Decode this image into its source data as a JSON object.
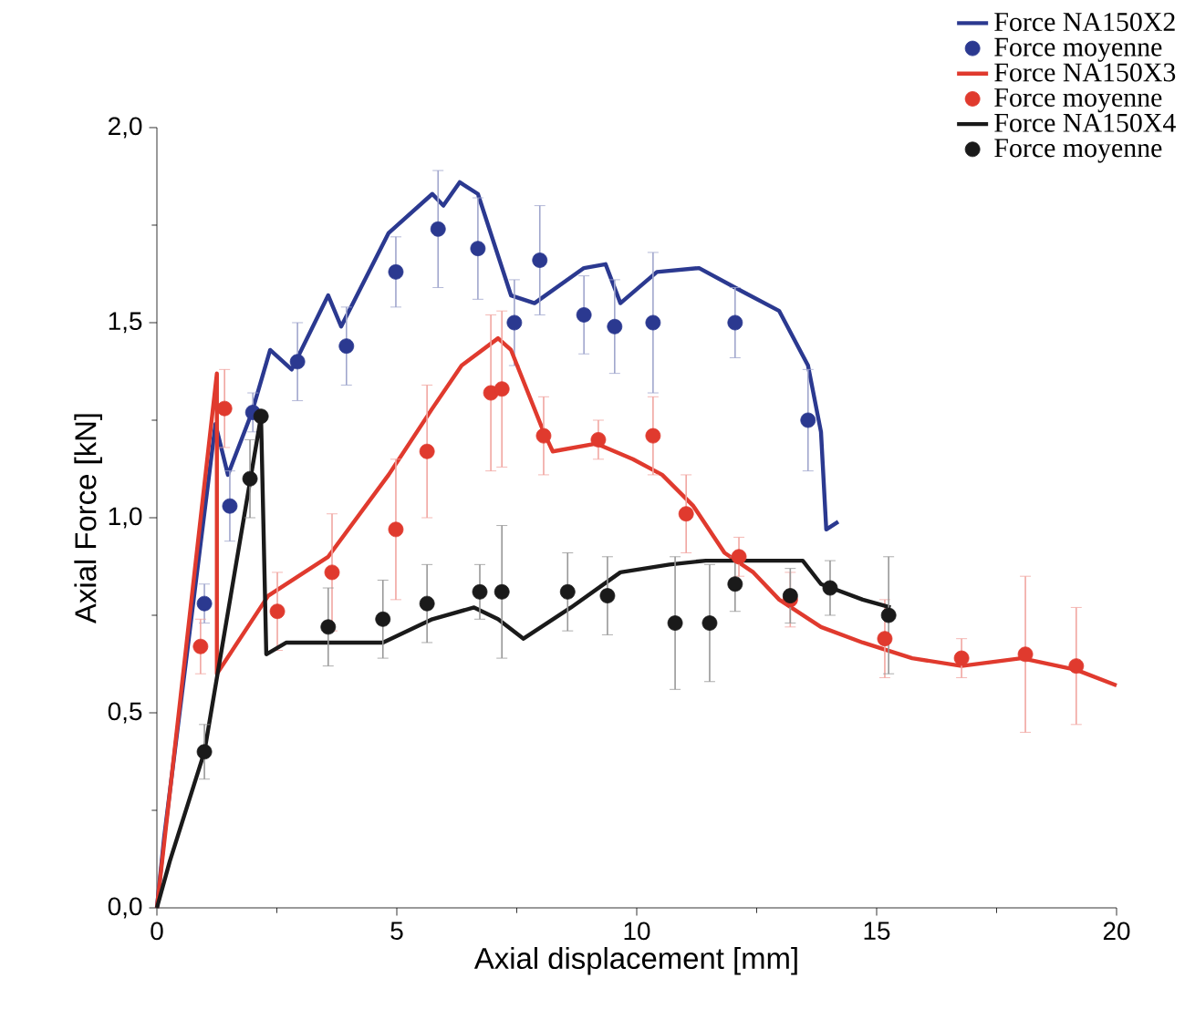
{
  "chart_data": {
    "type": "line",
    "xlabel": "Axial displacement [mm]",
    "ylabel": "Axial Force [kN]",
    "xlim": [
      0,
      20
    ],
    "ylim": [
      0,
      2.0
    ],
    "xticks": [
      0,
      5,
      10,
      15,
      20
    ],
    "yticks": [
      {
        "value": 0,
        "label": "0,0"
      },
      {
        "value": 0.5,
        "label": "0,5"
      },
      {
        "value": 1.0,
        "label": "1,0"
      },
      {
        "value": 1.5,
        "label": "1,5"
      },
      {
        "value": 2.0,
        "label": "2,0"
      }
    ],
    "grid": false,
    "legend": "top right",
    "series": [
      {
        "name": "Force NA150X2",
        "color": "#2b3990",
        "line_style": "solid",
        "marker": "none",
        "x": [
          0,
          0.15,
          1.22,
          1.48,
          1.98,
          2.36,
          2.81,
          3.57,
          3.84,
          4.83,
          5.74,
          5.97,
          6.31,
          6.69,
          7.38,
          7.87,
          8.9,
          9.35,
          9.66,
          10.42,
          11.3,
          12.2,
          12.97,
          13.57,
          13.84,
          13.95,
          14.2
        ],
        "values": [
          0,
          0.18,
          1.24,
          1.11,
          1.27,
          1.43,
          1.38,
          1.57,
          1.49,
          1.73,
          1.83,
          1.8,
          1.86,
          1.83,
          1.57,
          1.55,
          1.64,
          1.65,
          1.55,
          1.63,
          1.64,
          1.58,
          1.53,
          1.39,
          1.22,
          0.97,
          0.99
        ]
      },
      {
        "name": "Force moyenne",
        "type": "scatter",
        "color": "#2b3990",
        "marker": "circle",
        "x": [
          0.99,
          1.52,
          2.0,
          2.93,
          3.95,
          4.98,
          5.86,
          6.69,
          7.45,
          7.98,
          8.9,
          9.54,
          10.34,
          12.05,
          13.57
        ],
        "values": [
          0.78,
          1.03,
          1.27,
          1.4,
          1.44,
          1.63,
          1.74,
          1.69,
          1.5,
          1.66,
          1.52,
          1.49,
          1.5,
          1.5,
          1.25
        ],
        "errors": [
          0.05,
          0.09,
          0.05,
          0.1,
          0.1,
          0.09,
          0.15,
          0.13,
          0.11,
          0.14,
          0.1,
          0.12,
          0.18,
          0.09,
          0.13
        ]
      },
      {
        "name": "Force NA150X3",
        "color": "#e03a2e",
        "line_style": "solid",
        "marker": "none",
        "x": [
          0,
          1.25,
          1.25,
          2.32,
          3.57,
          4.83,
          5.74,
          6.35,
          7.11,
          7.38,
          8.06,
          8.25,
          9.16,
          9.92,
          10.53,
          11.18,
          11.83,
          12.43,
          12.97,
          13.84,
          14.71,
          15.74,
          16.77,
          18.02,
          19.16,
          20.0
        ],
        "values": [
          0,
          1.37,
          0.6,
          0.8,
          0.9,
          1.11,
          1.28,
          1.39,
          1.46,
          1.43,
          1.22,
          1.17,
          1.19,
          1.15,
          1.11,
          1.03,
          0.91,
          0.86,
          0.79,
          0.72,
          0.68,
          0.64,
          0.62,
          0.64,
          0.61,
          0.57
        ]
      },
      {
        "name": "Force moyenne",
        "type": "scatter",
        "color": "#e03a2e",
        "marker": "circle",
        "x": [
          0.91,
          1.41,
          2.51,
          3.65,
          4.98,
          5.63,
          6.96,
          7.19,
          8.06,
          9.2,
          10.34,
          11.03,
          12.13,
          13.2,
          15.17,
          16.77,
          18.1,
          19.16
        ],
        "values": [
          0.67,
          1.28,
          0.76,
          0.86,
          0.97,
          1.17,
          1.32,
          1.33,
          1.21,
          1.2,
          1.21,
          1.01,
          0.9,
          0.79,
          0.69,
          0.64,
          0.65,
          0.62
        ],
        "errors": [
          0.07,
          0.1,
          0.1,
          0.15,
          0.18,
          0.17,
          0.2,
          0.2,
          0.1,
          0.05,
          0.1,
          0.1,
          0.05,
          0.07,
          0.1,
          0.05,
          0.2,
          0.15
        ]
      },
      {
        "name": "Force NA150X4",
        "color": "#1a1a1a",
        "line_style": "solid",
        "marker": "none",
        "x": [
          0,
          0.27,
          0.99,
          2.17,
          2.28,
          2.7,
          3.57,
          4.71,
          5.74,
          6.61,
          7.11,
          7.64,
          8.63,
          9.66,
          10.68,
          11.44,
          13.46,
          13.84,
          14.71,
          15.29
        ],
        "values": [
          0,
          0.12,
          0.4,
          1.26,
          0.65,
          0.68,
          0.68,
          0.68,
          0.74,
          0.77,
          0.74,
          0.69,
          0.77,
          0.86,
          0.88,
          0.89,
          0.89,
          0.83,
          0.79,
          0.77
        ]
      },
      {
        "name": "Force moyenne",
        "type": "scatter",
        "color": "#1a1a1a",
        "marker": "circle",
        "x": [
          0.99,
          1.94,
          2.17,
          3.57,
          4.71,
          5.63,
          6.73,
          7.19,
          8.56,
          9.39,
          10.8,
          11.52,
          12.05,
          13.2,
          14.03,
          15.25
        ],
        "values": [
          0.4,
          1.1,
          1.26,
          0.72,
          0.74,
          0.78,
          0.81,
          0.81,
          0.81,
          0.8,
          0.73,
          0.73,
          0.83,
          0.8,
          0.82,
          0.75
        ],
        "errors": [
          0.07,
          0.1,
          null,
          0.1,
          0.1,
          0.1,
          0.07,
          0.17,
          0.1,
          0.1,
          0.17,
          0.15,
          0.07,
          0.07,
          0.07,
          0.15
        ]
      }
    ]
  }
}
